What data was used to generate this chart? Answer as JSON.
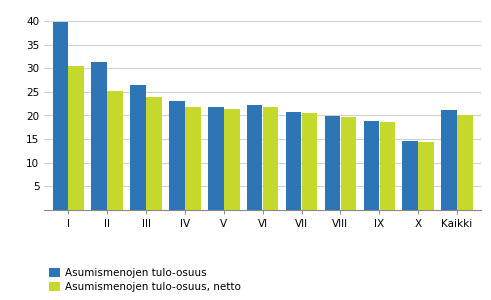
{
  "categories": [
    "I",
    "II",
    "III",
    "IV",
    "V",
    "VI",
    "VII",
    "VIII",
    "IX",
    "X",
    "Kaikki"
  ],
  "series1": [
    39.8,
    31.4,
    26.4,
    23.1,
    21.8,
    22.2,
    20.7,
    19.9,
    18.8,
    14.7,
    21.2
  ],
  "series2": [
    30.5,
    25.2,
    24.0,
    21.9,
    21.3,
    21.8,
    20.6,
    19.6,
    18.7,
    14.4,
    20.1
  ],
  "series1_label": "Asumismenojen tulo-osuus",
  "series2_label": "Asumismenojen tulo-osuus, netto",
  "series1_color": "#2E75B6",
  "series2_color": "#C5D92D",
  "ylabel": "%",
  "ylim": [
    0,
    40
  ],
  "yticks": [
    0,
    5,
    10,
    15,
    20,
    25,
    30,
    35,
    40
  ],
  "background_color": "#FFFFFF",
  "grid_color": "#C8C8C8"
}
